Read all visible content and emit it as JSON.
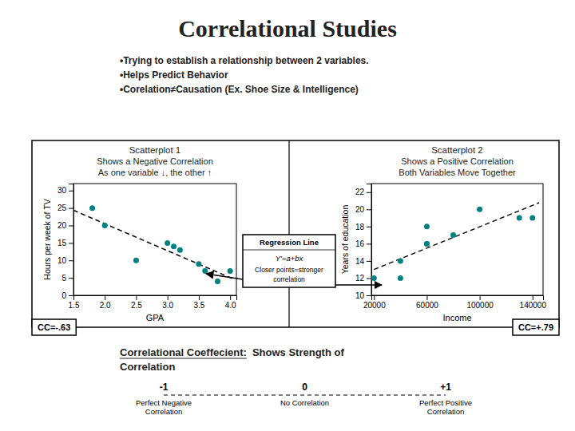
{
  "title": "Correlational Studies",
  "bullets": [
    "•Trying to establish a relationship between 2 variables.",
    "•Helps Predict Behavior",
    "•Corelation≠Causation (Ex. Shoe Size & Intelligence)"
  ],
  "regression_box": [
    "Regression Line",
    "Y'=a+bx",
    "Closer points=stronger",
    "correlation"
  ],
  "coefficient_note": [
    "Correlational Coeffecient:",
    "Shows Strength of",
    "Correlation"
  ],
  "coefficient_scale": [
    {
      "label": "-1",
      "caption": [
        "Perfect Negative",
        "Correlation"
      ]
    },
    {
      "label": "0",
      "caption": [
        "No Correlation"
      ]
    },
    {
      "label": "+1",
      "caption": [
        "Perfect Positive",
        "Correlation"
      ]
    }
  ],
  "chart_data": [
    {
      "type": "scatter",
      "title": "Scatterplot 1",
      "subtitle": [
        "Shows a Negative Correlation",
        "As one variable ↓, the other ↑"
      ],
      "xlabel": "GPA",
      "ylabel": "Hours per week of TV",
      "x": [
        1.8,
        2.0,
        2.5,
        3.0,
        3.1,
        3.2,
        3.5,
        3.6,
        3.8,
        4.0
      ],
      "values": [
        25,
        20,
        10,
        15,
        14,
        13,
        9,
        7,
        4,
        7
      ],
      "color": "#008080",
      "xlim": [
        1.5,
        4.1
      ],
      "ylim": [
        0,
        32
      ],
      "xticks": [
        1.5,
        {
          "value": 2,
          "label": "2.0"
        },
        2.5,
        {
          "value": 3,
          "label": "3.0"
        },
        3.5,
        {
          "value": 4,
          "label": "4.0"
        }
      ],
      "yticks": [
        0,
        5,
        10,
        15,
        20,
        25,
        30
      ],
      "fit_line": {
        "x": [
          1.5,
          4.05
        ],
        "values": [
          24.3567,
          4.686
        ],
        "color": "#000000",
        "line_style": "dashed"
      },
      "annotations": [
        "CC=-.63"
      ]
    },
    {
      "type": "scatter",
      "title": "Scatterplot 2",
      "subtitle": [
        "Shows a Positive Correlation",
        "Both Variables Move Together"
      ],
      "xlabel": "Income",
      "ylabel": "Years of education",
      "x": [
        20000,
        40000,
        40000,
        60000,
        60000,
        60000,
        80000,
        100000,
        130000,
        140000
      ],
      "values": [
        12,
        12,
        14,
        16,
        16,
        18,
        17,
        20,
        19,
        19
      ],
      "color": "#008080",
      "xlim": [
        18000,
        148000
      ],
      "ylim": [
        10,
        23
      ],
      "xticks": [
        20000,
        60000,
        100000,
        140000
      ],
      "yticks": [
        10,
        12,
        14,
        16,
        18,
        20,
        22
      ],
      "fit_line": {
        "x": [
          20000,
          145000
        ],
        "values": [
          13.005,
          20.7762
        ],
        "color": "#000000",
        "line_style": "dashed"
      },
      "annotations": [
        "CC=+.79"
      ]
    }
  ]
}
